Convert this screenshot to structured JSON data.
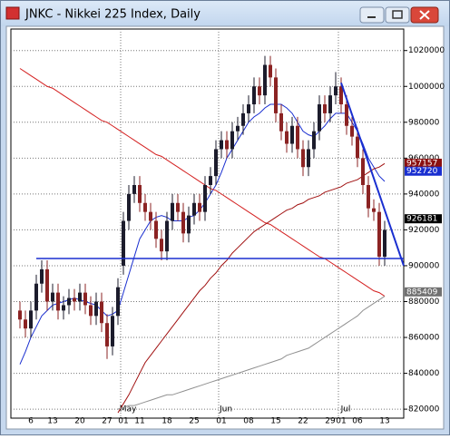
{
  "chart_data": {
    "type": "candlestick",
    "title": "JNKC - Nikkei 225 Index, Daily",
    "categories": [
      null,
      null,
      "6",
      null,
      null,
      null,
      "13",
      null,
      null,
      null,
      null,
      "20",
      null,
      null,
      null,
      null,
      "27",
      null,
      null,
      "01",
      null,
      null,
      "11",
      null,
      null,
      null,
      null,
      "18",
      null,
      null,
      null,
      null,
      "25",
      null,
      null,
      null,
      null,
      "01",
      null,
      null,
      null,
      null,
      "08",
      null,
      null,
      null,
      null,
      "15",
      null,
      null,
      null,
      null,
      "22",
      null,
      null,
      null,
      null,
      "29",
      null,
      "01",
      null,
      null,
      "06",
      null,
      null,
      null,
      null,
      "13"
    ],
    "months": [
      null,
      null,
      null,
      null,
      null,
      null,
      null,
      null,
      null,
      null,
      null,
      null,
      null,
      null,
      null,
      null,
      null,
      null,
      null,
      "May",
      null,
      null,
      null,
      null,
      null,
      null,
      null,
      null,
      null,
      null,
      null,
      null,
      null,
      null,
      null,
      null,
      null,
      "Jun",
      null,
      null,
      null,
      null,
      null,
      null,
      null,
      null,
      null,
      null,
      null,
      null,
      null,
      null,
      null,
      null,
      null,
      null,
      null,
      null,
      null,
      "Jul",
      null,
      null,
      null,
      null,
      null,
      null,
      null,
      null
    ],
    "open": [
      875000,
      870000,
      865000,
      875000,
      890000,
      898000,
      880000,
      885000,
      875000,
      878000,
      882000,
      880000,
      885000,
      878000,
      872000,
      880000,
      868000,
      855000,
      872000,
      900000,
      925000,
      940000,
      945000,
      935000,
      930000,
      925000,
      915000,
      908000,
      925000,
      935000,
      930000,
      918000,
      928000,
      935000,
      930000,
      945000,
      950000,
      965000,
      970000,
      965000,
      975000,
      978000,
      985000,
      990000,
      1000000,
      995000,
      1012000,
      1005000,
      985000,
      975000,
      968000,
      978000,
      965000,
      955000,
      965000,
      975000,
      990000,
      985000,
      995000,
      1000000,
      990000,
      978000,
      972000,
      960000,
      945000,
      932000,
      930000,
      905000
    ],
    "high": [
      880000,
      875000,
      880000,
      895000,
      903000,
      903000,
      890000,
      890000,
      883000,
      887000,
      887000,
      890000,
      890000,
      883000,
      885000,
      885000,
      873000,
      877000,
      893000,
      930000,
      945000,
      950000,
      950000,
      940000,
      935000,
      930000,
      920000,
      930000,
      940000,
      940000,
      935000,
      933000,
      940000,
      940000,
      950000,
      955000,
      970000,
      975000,
      975000,
      980000,
      983000,
      990000,
      995000,
      1005000,
      1005000,
      1017000,
      1017000,
      1010000,
      990000,
      980000,
      983000,
      983000,
      970000,
      970000,
      980000,
      995000,
      995000,
      1000000,
      1008000,
      1005000,
      995000,
      983000,
      977000,
      965000,
      950000,
      937000,
      935000,
      925000
    ],
    "low": [
      865000,
      860000,
      860000,
      870000,
      885000,
      875000,
      875000,
      870000,
      870000,
      873000,
      875000,
      875000,
      873000,
      867000,
      867000,
      863000,
      848000,
      850000,
      867000,
      895000,
      920000,
      935000,
      930000,
      925000,
      920000,
      910000,
      903000,
      903000,
      920000,
      925000,
      913000,
      913000,
      923000,
      925000,
      925000,
      940000,
      945000,
      960000,
      960000,
      960000,
      970000,
      973000,
      980000,
      985000,
      990000,
      990000,
      1000000,
      980000,
      970000,
      963000,
      963000,
      960000,
      950000,
      950000,
      960000,
      970000,
      980000,
      980000,
      990000,
      985000,
      973000,
      967000,
      955000,
      940000,
      927000,
      925000,
      900000,
      900000
    ],
    "close": [
      870000,
      865000,
      875000,
      890000,
      898000,
      880000,
      885000,
      875000,
      878000,
      882000,
      880000,
      885000,
      878000,
      872000,
      880000,
      868000,
      855000,
      872000,
      888000,
      925000,
      940000,
      945000,
      935000,
      930000,
      925000,
      915000,
      908000,
      925000,
      935000,
      930000,
      918000,
      928000,
      935000,
      930000,
      945000,
      950000,
      965000,
      970000,
      965000,
      975000,
      978000,
      985000,
      990000,
      1000000,
      995000,
      1012000,
      1005000,
      985000,
      975000,
      968000,
      978000,
      965000,
      955000,
      965000,
      975000,
      990000,
      985000,
      995000,
      1000000,
      990000,
      978000,
      972000,
      960000,
      945000,
      932000,
      930000,
      905000,
      920000
    ],
    "up_color": "#1c1c2c",
    "down_color": "#8b2323",
    "lines": [
      {
        "color": "#1a2fd0",
        "values": [
          845000,
          852000,
          860000,
          866000,
          872000,
          875000,
          878000,
          879000,
          880000,
          881000,
          882000,
          881000,
          880000,
          879000,
          878000,
          875000,
          872000,
          873000,
          875000,
          885000,
          895000,
          905000,
          915000,
          920000,
          925000,
          927000,
          928000,
          927000,
          925000,
          925000,
          925000,
          927000,
          928000,
          931000,
          935000,
          940000,
          945000,
          952000,
          960000,
          965000,
          970000,
          975000,
          980000,
          983000,
          985000,
          988000,
          990000,
          990000,
          990000,
          988000,
          985000,
          980000,
          975000,
          973000,
          972000,
          975000,
          978000,
          982000,
          985000,
          985000,
          985000,
          980000,
          975000,
          968000,
          960000,
          955000,
          950000,
          947000
        ]
      },
      {
        "color": "#d42020",
        "values": [
          1010000,
          1008000,
          1006000,
          1004000,
          1002000,
          1000000,
          999000,
          997000,
          995000,
          993000,
          991000,
          989000,
          987000,
          985000,
          983000,
          981000,
          980000,
          978000,
          976000,
          974000,
          972000,
          970000,
          968000,
          966000,
          964000,
          962000,
          961000,
          959000,
          957000,
          955000,
          953000,
          951000,
          949000,
          947000,
          945000,
          943000,
          942000,
          940000,
          938000,
          936000,
          934000,
          932000,
          930000,
          928000,
          926000,
          924000,
          923000,
          921000,
          919000,
          917000,
          915000,
          913000,
          911000,
          909000,
          907000,
          905000,
          904000,
          902000,
          900000,
          898000,
          896000,
          894000,
          892000,
          890000,
          888000,
          886000,
          885000,
          883000
        ]
      },
      {
        "color": "#a01010",
        "values": [
          null,
          null,
          null,
          null,
          null,
          null,
          null,
          null,
          null,
          null,
          null,
          null,
          null,
          null,
          null,
          null,
          null,
          null,
          818000,
          823000,
          828000,
          834000,
          840000,
          846000,
          850000,
          854000,
          858000,
          862000,
          866000,
          870000,
          874000,
          878000,
          882000,
          886000,
          889000,
          893000,
          896000,
          900000,
          903000,
          907000,
          910000,
          913000,
          916000,
          919000,
          921000,
          923000,
          925000,
          927000,
          929000,
          931000,
          932000,
          934000,
          935000,
          937000,
          938000,
          939000,
          941000,
          942000,
          943000,
          944000,
          946000,
          947000,
          948000,
          950000,
          952000,
          954000,
          955000,
          957000
        ]
      },
      {
        "color": "#909090",
        "values": [
          null,
          null,
          null,
          null,
          null,
          null,
          null,
          null,
          null,
          null,
          null,
          null,
          null,
          null,
          null,
          null,
          null,
          null,
          820000,
          821000,
          822000,
          822000,
          823000,
          824000,
          825000,
          826000,
          827000,
          828000,
          828000,
          829000,
          830000,
          831000,
          832000,
          833000,
          834000,
          835000,
          836000,
          837000,
          838000,
          839000,
          840000,
          841000,
          842000,
          843000,
          844000,
          845000,
          846000,
          847000,
          848000,
          850000,
          851000,
          852000,
          853000,
          854000,
          856000,
          858000,
          860000,
          862000,
          864000,
          866000,
          868000,
          870000,
          872000,
          875000,
          877000,
          879000,
          881000,
          883000
        ]
      }
    ],
    "hline": {
      "value": 904000,
      "color": "#1a2fd0"
    },
    "trend_line": {
      "x": [
        59,
        70.5
      ],
      "y": [
        1002000,
        900000
      ],
      "color": "#1a2fd0"
    },
    "price_tags": [
      {
        "value": 957157,
        "color": "#8b1010"
      },
      {
        "value": 952720,
        "color": "#1a2fd0"
      },
      {
        "value": 926181,
        "color": "#000000"
      },
      {
        "value": 885409,
        "color": "#707070"
      }
    ],
    "ylim": [
      815000,
      1032000
    ],
    "yticks": [
      820000,
      840000,
      860000,
      880000,
      900000,
      920000,
      940000,
      960000,
      980000,
      1000000,
      1020000
    ],
    "grid": true
  }
}
